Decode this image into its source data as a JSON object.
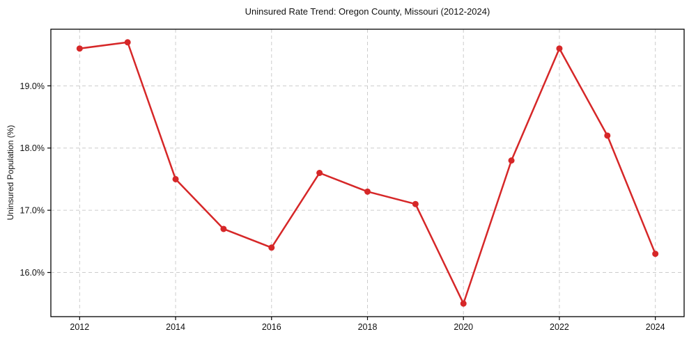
{
  "chart_data": {
    "type": "line",
    "title": "Uninsured Rate Trend: Oregon County, Missouri (2012-2024)",
    "xlabel": "",
    "ylabel": "Uninsured Population (%)",
    "x": [
      2012,
      2013,
      2014,
      2015,
      2016,
      2017,
      2018,
      2019,
      2020,
      2021,
      2022,
      2023,
      2024
    ],
    "values": [
      19.6,
      19.7,
      17.5,
      16.7,
      16.4,
      17.6,
      17.3,
      17.1,
      15.5,
      17.8,
      19.6,
      18.2,
      16.3
    ],
    "xticks": {
      "values": [
        2012,
        2014,
        2016,
        2018,
        2020,
        2022,
        2024
      ],
      "labels": [
        "2012",
        "2014",
        "2016",
        "2018",
        "2020",
        "2022",
        "2024"
      ]
    },
    "yticks": {
      "values": [
        16,
        17,
        18,
        19
      ],
      "labels": [
        "16.0%",
        "17.0%",
        "18.0%",
        "19.0%"
      ]
    },
    "xlim": [
      2011.4,
      2024.6
    ],
    "ylim": [
      15.29,
      19.91
    ],
    "grid": true,
    "grid_style": "dashed",
    "legend": "none",
    "marker": "circle",
    "colors": {
      "line": "#d62728",
      "grid": "#cccccc",
      "axis": "#000000",
      "text": "#111111",
      "background": "#ffffff"
    }
  }
}
